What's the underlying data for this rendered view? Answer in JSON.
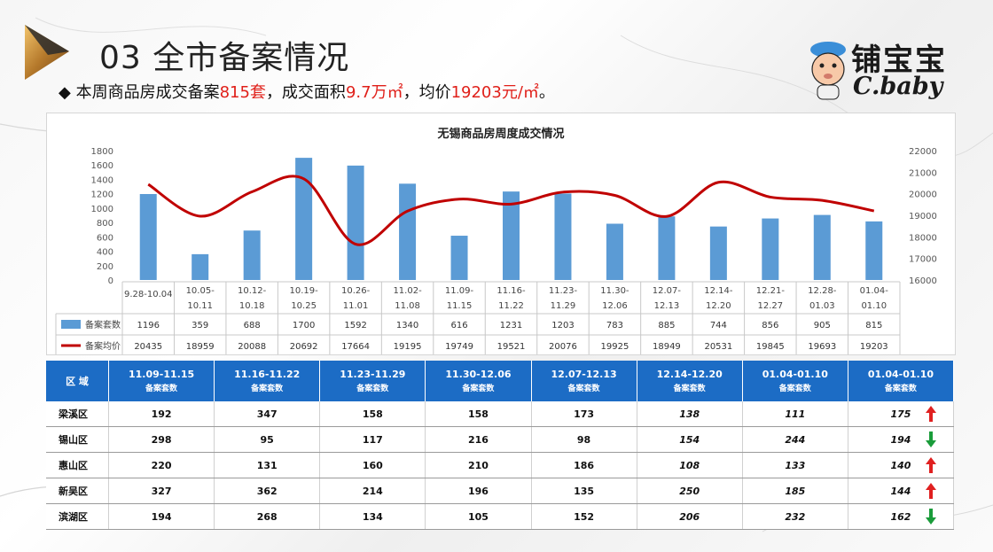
{
  "header": {
    "title": "03 全市备案情况",
    "bullet_parts": [
      "◆ 本周商品房成交备案",
      "815套",
      "，成交面积",
      "9.7万㎡",
      "，均价",
      "19203元/㎡",
      "。"
    ]
  },
  "brand": {
    "cn": "铺宝宝",
    "en": "C.baby"
  },
  "colors": {
    "bar": "#5b9bd5",
    "line": "#c00000",
    "header_bg": "#1c6cc5",
    "up": "#e02020",
    "down": "#1a9c3a"
  },
  "chart_data": {
    "type": "bar",
    "title": "无锡商品房周度成交情况",
    "categories": [
      "9.28-10.04",
      "10.05-10.11",
      "10.12-10.18",
      "10.19-10.25",
      "10.26-11.01",
      "11.02-11.08",
      "11.09-11.15",
      "11.16-11.22",
      "11.23-11.29",
      "11.30-12.06",
      "12.07-12.13",
      "12.14-12.20",
      "12.21-12.27",
      "12.28-01.03",
      "01.04-01.10"
    ],
    "category_lines": [
      [
        "9.28-10.04",
        ""
      ],
      [
        "10.05-",
        "10.11"
      ],
      [
        "10.12-",
        "10.18"
      ],
      [
        "10.19-",
        "10.25"
      ],
      [
        "10.26-",
        "11.01"
      ],
      [
        "11.02-",
        "11.08"
      ],
      [
        "11.09-",
        "11.15"
      ],
      [
        "11.16-",
        "11.22"
      ],
      [
        "11.23-",
        "11.29"
      ],
      [
        "11.30-",
        "12.06"
      ],
      [
        "12.07-",
        "12.13"
      ],
      [
        "12.14-",
        "12.20"
      ],
      [
        "12.21-",
        "12.27"
      ],
      [
        "12.28-",
        "01.03"
      ],
      [
        "01.04-",
        "01.10"
      ]
    ],
    "series": [
      {
        "name": "备案套数",
        "type": "bar",
        "axis": "left",
        "values": [
          1196,
          359,
          688,
          1700,
          1592,
          1340,
          616,
          1231,
          1203,
          783,
          885,
          744,
          856,
          905,
          815
        ]
      },
      {
        "name": "备案均价",
        "type": "line",
        "axis": "right",
        "values": [
          20435,
          18959,
          20088,
          20692,
          17664,
          19195,
          19749,
          19521,
          20076,
          19925,
          18949,
          20531,
          19845,
          19693,
          19203
        ]
      }
    ],
    "y_left": {
      "ticks": [
        "1800",
        "1600",
        "1400",
        "1200",
        "1000",
        "800",
        "600",
        "400",
        "200",
        "0"
      ],
      "range": [
        0,
        1800
      ]
    },
    "y_right": {
      "ticks": [
        "22000",
        "21000",
        "20000",
        "19000",
        "18000",
        "17000",
        "16000"
      ],
      "range": [
        16000,
        22000
      ]
    }
  },
  "table": {
    "region_header": "区 域",
    "columns": [
      {
        "date": "11.09-11.15",
        "sub": "备案套数"
      },
      {
        "date": "11.16-11.22",
        "sub": "备案套数"
      },
      {
        "date": "11.23-11.29",
        "sub": "备案套数"
      },
      {
        "date": "11.30-12.06",
        "sub": "备案套数"
      },
      {
        "date": "12.07-12.13",
        "sub": "备案套数"
      },
      {
        "date": "12.14-12.20",
        "sub": "备案套数"
      },
      {
        "date": "01.04-01.10",
        "sub": "备案套数"
      },
      {
        "date": "01.04-01.10",
        "sub": "备案套数"
      }
    ],
    "rows": [
      {
        "region": "梁溪区",
        "values": [
          "192",
          "347",
          "158",
          "158",
          "173",
          "138",
          "111",
          "175"
        ],
        "trend": "up"
      },
      {
        "region": "锡山区",
        "values": [
          "298",
          "95",
          "117",
          "216",
          "98",
          "154",
          "244",
          "194"
        ],
        "trend": "down"
      },
      {
        "region": "惠山区",
        "values": [
          "220",
          "131",
          "160",
          "210",
          "186",
          "108",
          "133",
          "140"
        ],
        "trend": "up"
      },
      {
        "region": "新吴区",
        "values": [
          "327",
          "362",
          "214",
          "196",
          "135",
          "250",
          "185",
          "144"
        ],
        "trend": "up"
      },
      {
        "region": "滨湖区",
        "values": [
          "194",
          "268",
          "134",
          "105",
          "152",
          "206",
          "232",
          "162"
        ],
        "trend": "down"
      }
    ]
  }
}
